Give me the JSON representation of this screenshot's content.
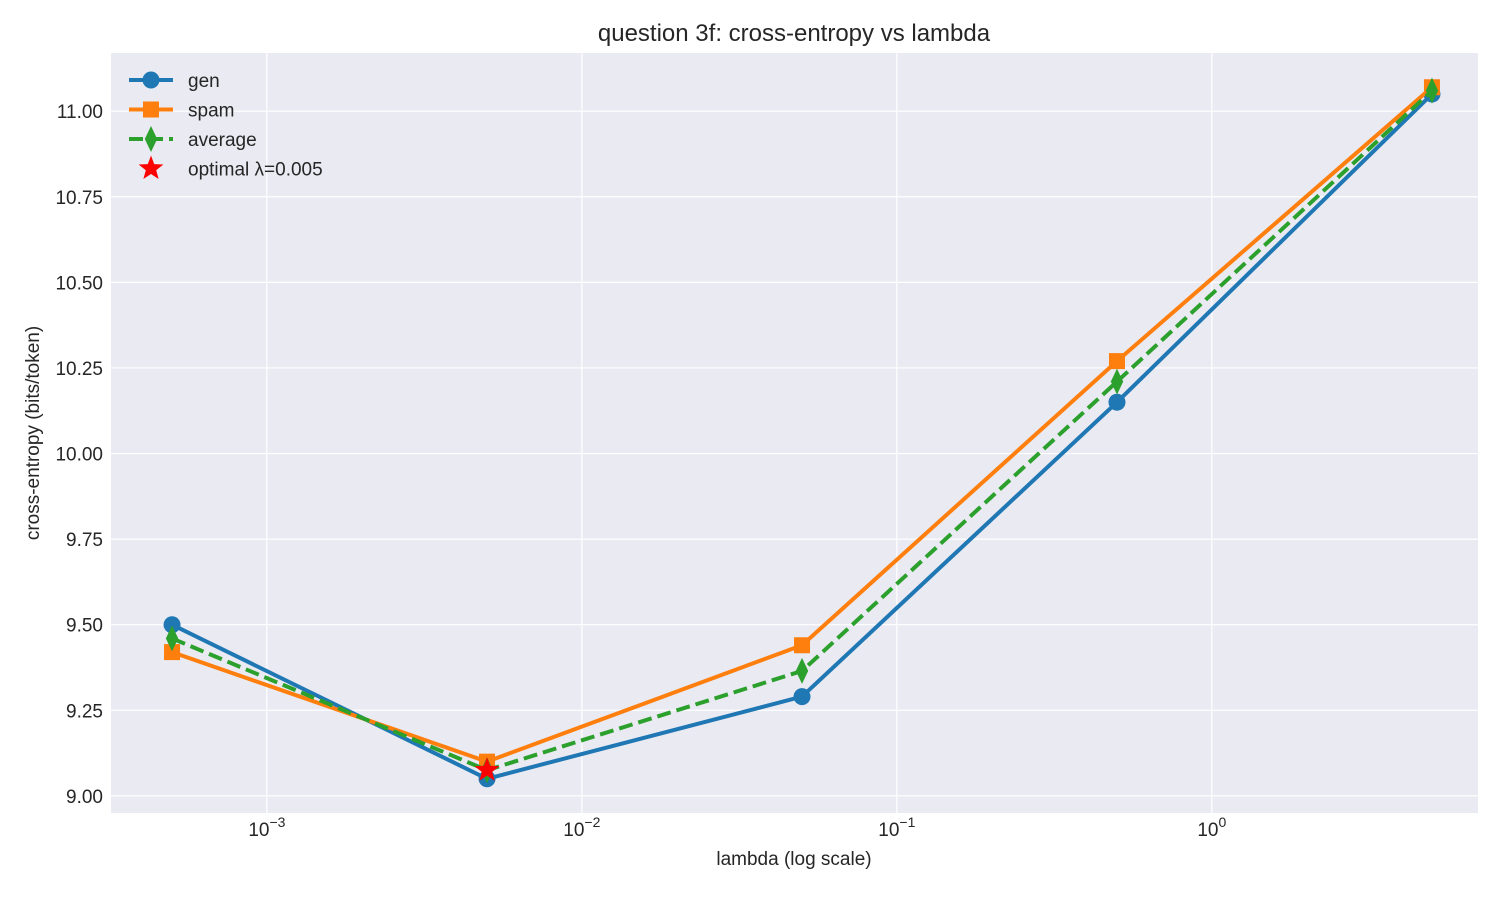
{
  "chart_data": {
    "type": "line",
    "title": "question 3f: cross-entropy vs lambda",
    "xlabel": "lambda (log scale)",
    "ylabel": "cross-entropy (bits/token)",
    "x_scale": "log",
    "x": [
      0.0005,
      0.005,
      0.05,
      0.5,
      5
    ],
    "xlim": [
      0.00032,
      7.0
    ],
    "ylim": [
      8.95,
      11.17
    ],
    "x_ticks": [
      {
        "value": 0.001,
        "base": "10",
        "exp": "−3"
      },
      {
        "value": 0.01,
        "base": "10",
        "exp": "−2"
      },
      {
        "value": 0.1,
        "base": "10",
        "exp": "−1"
      },
      {
        "value": 1,
        "base": "10",
        "exp": "0"
      }
    ],
    "y_ticks": [
      {
        "value": 9.0,
        "label": "9.00"
      },
      {
        "value": 9.25,
        "label": "9.25"
      },
      {
        "value": 9.5,
        "label": "9.50"
      },
      {
        "value": 9.75,
        "label": "9.75"
      },
      {
        "value": 10.0,
        "label": "10.00"
      },
      {
        "value": 10.25,
        "label": "10.25"
      },
      {
        "value": 10.5,
        "label": "10.50"
      },
      {
        "value": 10.75,
        "label": "10.75"
      },
      {
        "value": 11.0,
        "label": "11.00"
      }
    ],
    "grid": true,
    "legend_position": "top-left",
    "series": [
      {
        "name": "gen",
        "values": [
          9.5,
          9.05,
          9.29,
          10.15,
          11.05
        ],
        "color": "#1f77b4",
        "marker": "circle",
        "linestyle": "solid"
      },
      {
        "name": "spam",
        "values": [
          9.42,
          9.1,
          9.44,
          10.27,
          11.07
        ],
        "color": "#ff7f0e",
        "marker": "square",
        "linestyle": "solid"
      },
      {
        "name": "average",
        "values": [
          9.46,
          9.075,
          9.365,
          10.21,
          11.06
        ],
        "color": "#2ca02c",
        "marker": "diamond",
        "linestyle": "dashed"
      }
    ],
    "optimal": {
      "name": "optimal λ=0.005",
      "x": 0.005,
      "y": 9.075,
      "color": "#ff0000",
      "marker": "star"
    }
  }
}
